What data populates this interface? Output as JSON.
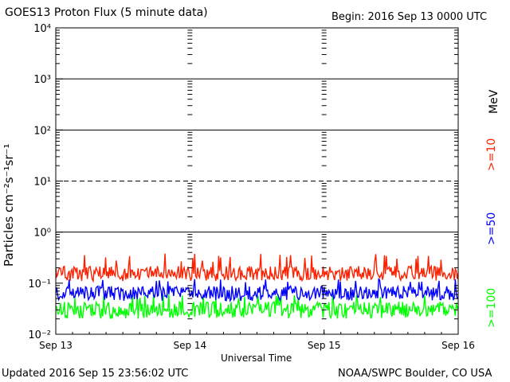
{
  "header": {
    "title": "GOES13 Proton Flux (5 minute data)",
    "begin": "Begin: 2016 Sep 13 0000 UTC"
  },
  "footer": {
    "updated": "Updated 2016 Sep 15 23:56:02 UTC",
    "credit": "NOAA/SWPC Boulder, CO USA"
  },
  "energy_labels": {
    "unit": "MeV",
    "ge10": ">=10",
    "ge50": ">=50",
    "ge100": ">=100"
  },
  "chart_data": {
    "type": "line",
    "title": "GOES13 Proton Flux (5 minute data)",
    "xlabel": "Universal Time",
    "ylabel": "Particles cm⁻²s⁻¹sr⁻¹",
    "yscale": "log",
    "ylim": [
      0.01,
      10000
    ],
    "xlim": [
      "2016-09-13",
      "2016-09-16"
    ],
    "x_ticks": [
      "Sep 13",
      "Sep 14",
      "Sep 15",
      "Sep 16"
    ],
    "y_ticks": [
      "10⁻²",
      "10⁻¹",
      "10⁰",
      "10¹",
      "10²",
      "10³",
      "10⁴"
    ],
    "reference_lines": [
      {
        "y": 1,
        "style": "solid"
      },
      {
        "y": 10,
        "style": "dashed"
      },
      {
        "y": 100,
        "style": "solid"
      },
      {
        "y": 1000,
        "style": "solid"
      }
    ],
    "series": [
      {
        "name": ">=10 MeV",
        "color": "#ff2000",
        "typical": 0.16,
        "min": 0.11,
        "max": 0.38
      },
      {
        "name": ">=50 MeV",
        "color": "#0000ff",
        "typical": 0.065,
        "min": 0.045,
        "max": 0.12
      },
      {
        "name": ">=100 MeV",
        "color": "#00ff00",
        "typical": 0.032,
        "min": 0.02,
        "max": 0.06
      }
    ]
  }
}
